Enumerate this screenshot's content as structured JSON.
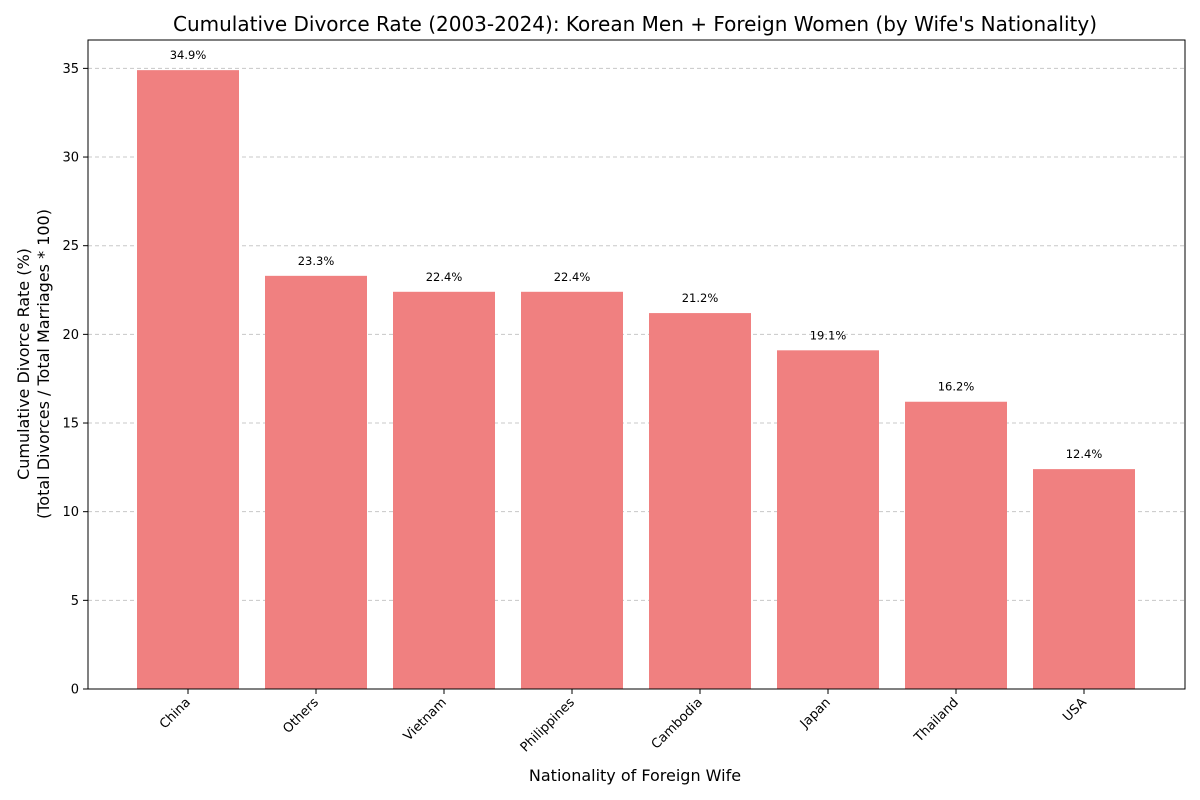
{
  "chart_data": {
    "type": "bar",
    "title": "Cumulative Divorce Rate (2003-2024): Korean Men + Foreign Women (by Wife's Nationality)",
    "xlabel": "Nationality of Foreign Wife",
    "ylabel_lines": [
      "Cumulative Divorce Rate (%)",
      "(Total Divorces / Total Marriages * 100)"
    ],
    "categories": [
      "China",
      "Others",
      "Vietnam",
      "Philippines",
      "Cambodia",
      "Japan",
      "Thailand",
      "USA"
    ],
    "values": [
      34.9,
      23.3,
      22.4,
      22.4,
      21.2,
      19.1,
      16.2,
      12.4
    ],
    "data_labels": [
      "34.9%",
      "23.3%",
      "22.4%",
      "22.4%",
      "21.2%",
      "19.1%",
      "16.2%",
      "12.4%"
    ],
    "yticks": [
      0,
      5,
      10,
      15,
      20,
      25,
      30,
      35
    ],
    "ylim": [
      0,
      36.6
    ],
    "grid": "y-dashed",
    "bar_color": "#f08080"
  }
}
